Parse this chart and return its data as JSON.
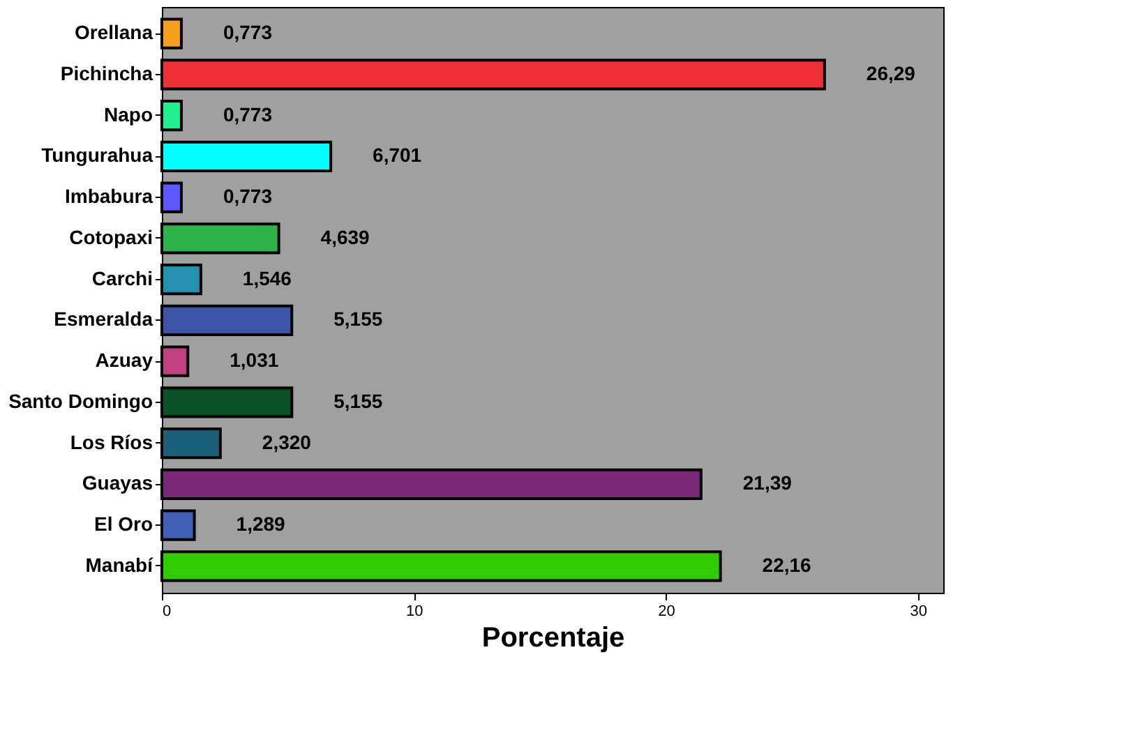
{
  "chart_data": {
    "type": "bar",
    "orientation": "horizontal",
    "xlabel": "Porcentaje",
    "categories": [
      "Orellana",
      "Pichincha",
      "Napo",
      "Tungurahua",
      "Imbabura",
      "Cotopaxi",
      "Carchi",
      "Esmeralda",
      "Azuay",
      "Santo Domingo",
      "Los Ríos",
      "Guayas",
      "El Oro",
      "Manabí"
    ],
    "values": [
      0.773,
      26.29,
      0.773,
      6.701,
      0.773,
      4.639,
      1.546,
      5.155,
      1.031,
      5.155,
      2.32,
      21.39,
      1.289,
      22.16
    ],
    "value_labels": [
      "0,773",
      "26,29",
      "0,773",
      "6,701",
      "0,773",
      "4,639",
      "1,546",
      "5,155",
      "1,031",
      "5,155",
      "2,320",
      "21,39",
      "1,289",
      "22,16"
    ],
    "colors": [
      "#f5a020",
      "#ee3039",
      "#20f090",
      "#00ffff",
      "#5a5aff",
      "#2eb34a",
      "#2590b0",
      "#3c55a8",
      "#c04080",
      "#0c5028",
      "#1a6078",
      "#7a2878",
      "#4060b8",
      "#30cc00"
    ],
    "xlim": [
      0,
      31
    ],
    "xticks": [
      0,
      10,
      20,
      30
    ],
    "grid": false
  }
}
